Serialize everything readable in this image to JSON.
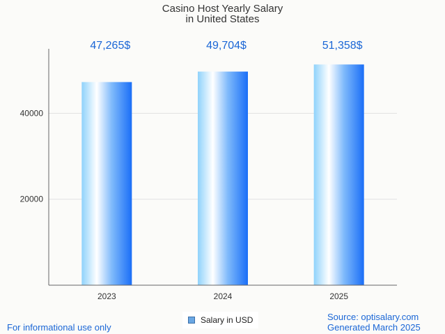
{
  "title": [
    "Casino Host Yearly Salary",
    "in United States"
  ],
  "footer": {
    "left": "For informational use only",
    "source": "Source: optisalary.com",
    "generated": "Generated March 2025"
  },
  "chart_data": {
    "type": "bar",
    "categories": [
      "2023",
      "2024",
      "2025"
    ],
    "values": [
      47265,
      49704,
      51358
    ],
    "value_labels": [
      "47,265$",
      "49,704$",
      "51,358$"
    ],
    "y_ticks": [
      20000,
      40000
    ],
    "y_tick_labels": [
      "20000",
      "40000"
    ],
    "ylim": [
      0,
      55000
    ],
    "grid": true,
    "legend": {
      "position": "bottom",
      "entries": [
        "Salary in USD"
      ]
    },
    "colors": {
      "bar_edge": "#1a6ef7",
      "bar_light": "#ffffff",
      "bar_mid": "#8fd2fb",
      "label": "#1a66d6"
    }
  }
}
